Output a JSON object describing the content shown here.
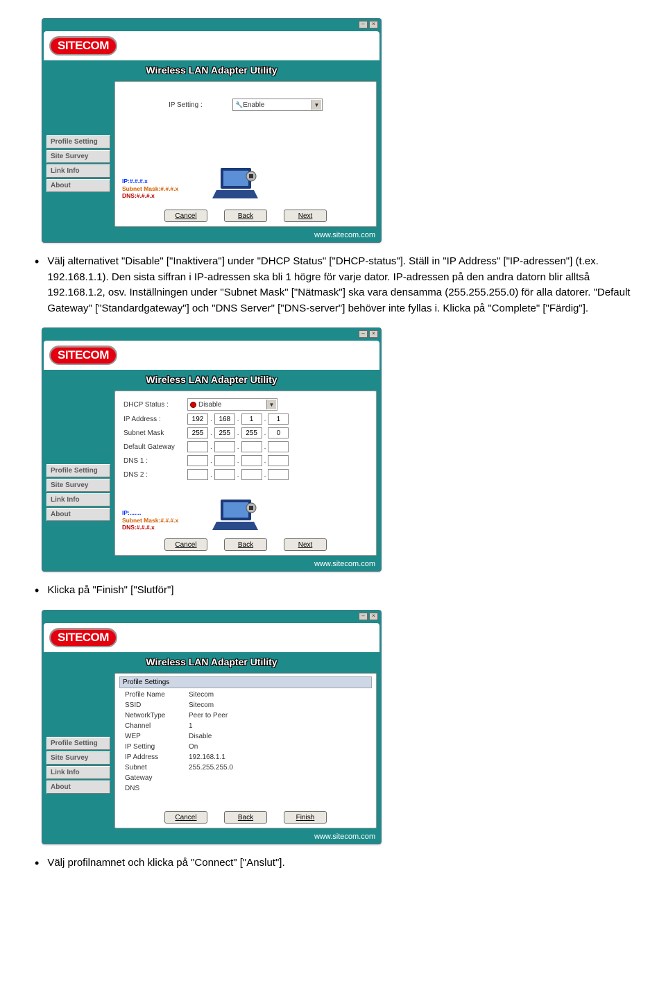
{
  "app": {
    "brand": "SITECOM",
    "title": "Wireless LAN Adapter Utility",
    "footer_url": "www.sitecom.com",
    "sidebar": [
      "Profile Setting",
      "Site Survey",
      "Link Info",
      "About"
    ],
    "buttons": {
      "cancel": "Cancel",
      "back": "Back",
      "next": "Next",
      "finish": "Finish"
    }
  },
  "window1": {
    "ip_setting_label": "IP Setting :",
    "ip_setting_value": "Enable",
    "info_ip": "IP:#.#.#.x",
    "info_mask": "Subnet Mask:#.#.#.x",
    "info_dns": "DNS:#.#.#.x"
  },
  "para1": "Välj alternativet \"Disable\" [\"Inaktivera\"] under \"DHCP Status\" [\"DHCP-status\"]. Ställ in \"IP Address\" [\"IP-adressen\"] (t.ex. 192.168.1.1). Den sista siffran i IP-adressen ska bli 1 högre för varje dator. IP-adressen på den andra datorn blir alltså 192.168.1.2, osv. Inställningen under \"Subnet Mask\" [\"Nätmask\"] ska vara densamma (255.255.255.0) för alla datorer. \"Default Gateway\" [\"Standardgateway\"] och \"DNS Server\" [\"DNS-server\"] behöver inte fyllas i. Klicka på \"Complete\" [\"Färdig\"].",
  "window2": {
    "fields": {
      "dhcp_status_label": "DHCP Status :",
      "dhcp_status_value": "Disable",
      "ip_label": "IP Address :",
      "ip": [
        "192",
        "168",
        "1",
        "1"
      ],
      "mask_label": "Subnet Mask",
      "mask": [
        "255",
        "255",
        "255",
        "0"
      ],
      "gw_label": "Default Gateway",
      "gw": [
        "",
        "",
        "",
        ""
      ],
      "dns1_label": "DNS 1 :",
      "dns1": [
        "",
        "",
        "",
        ""
      ],
      "dns2_label": "DNS 2 :",
      "dns2": [
        "",
        "",
        "",
        ""
      ]
    },
    "info_ip": "IP:.......",
    "info_mask": "Subnet Mask:#.#.#.x",
    "info_dns": "DNS:#.#.#.x"
  },
  "para2": "Klicka på \"Finish\" [\"Slutför\"]",
  "window3": {
    "panel_title": "Profile Settings",
    "rows": [
      [
        "Profile Name",
        "Sitecom"
      ],
      [
        "SSID",
        "Sitecom"
      ],
      [
        "NetworkType",
        "Peer to Peer"
      ],
      [
        "Channel",
        "1"
      ],
      [
        "WEP",
        "Disable"
      ],
      [
        "IP Setting",
        "On"
      ],
      [
        "IP Address",
        "192.168.1.1"
      ],
      [
        "Subnet",
        "255.255.255.0"
      ],
      [
        "Gateway",
        ""
      ],
      [
        "DNS",
        ""
      ]
    ]
  },
  "para3": "Välj profilnamnet och klicka på \"Connect\" [\"Anslut\"].",
  "colors": {
    "window_bg": "#1f8a8a",
    "logo_red": "#e3000f",
    "btn_face": "#eae7e0"
  }
}
